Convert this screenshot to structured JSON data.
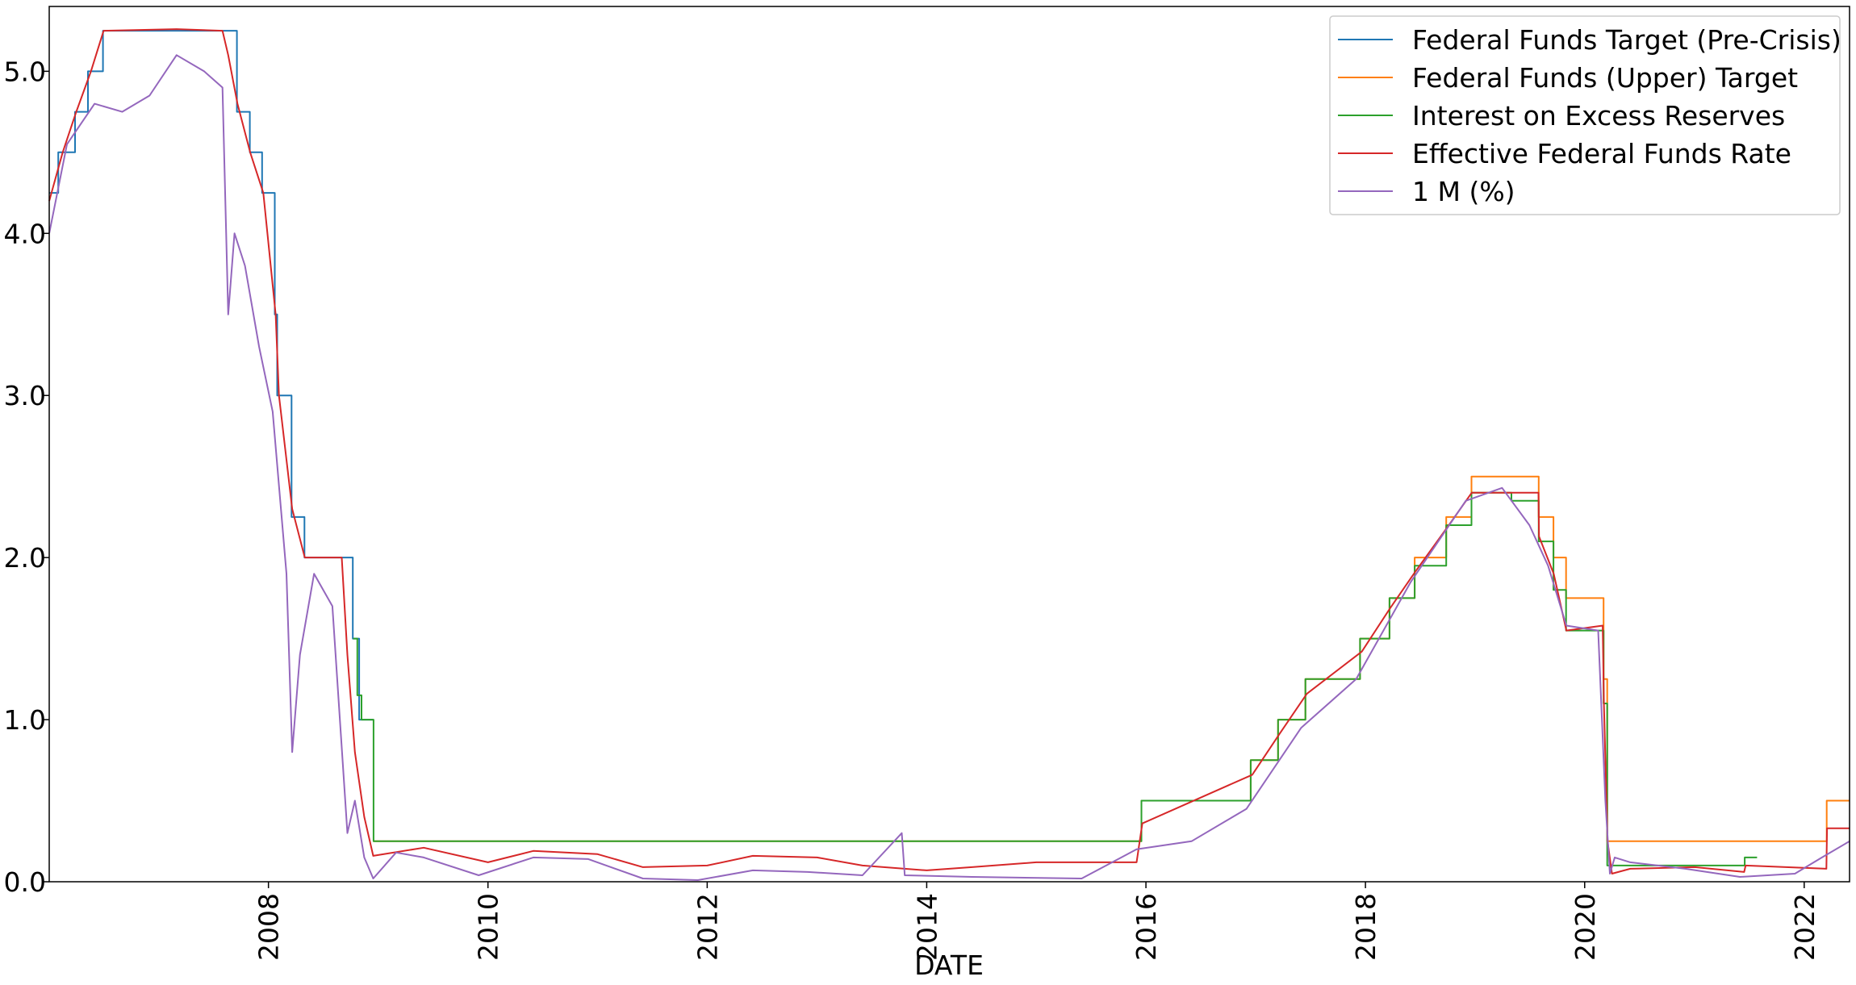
{
  "chart_data": {
    "type": "line",
    "title": "",
    "xlabel": "DATE",
    "ylabel": "",
    "xlim": [
      "2006-01-01",
      "2022-06-01"
    ],
    "ylim": [
      0,
      5.4
    ],
    "x_ticks": [
      "2008",
      "2010",
      "2012",
      "2014",
      "2016",
      "2018",
      "2020",
      "2022"
    ],
    "y_ticks": [
      "0.0",
      "1.0",
      "2.0",
      "3.0",
      "4.0",
      "5.0"
    ],
    "grid": false,
    "legend_position": "top-right",
    "series": [
      {
        "name": "Federal Funds Target (Pre-Crisis)",
        "color": "#1f77b4",
        "style": "step",
        "points": [
          [
            "2006-01-01",
            4.25
          ],
          [
            "2006-01-31",
            4.5
          ],
          [
            "2006-03-28",
            4.75
          ],
          [
            "2006-05-10",
            5.0
          ],
          [
            "2006-06-29",
            5.25
          ],
          [
            "2007-09-18",
            4.75
          ],
          [
            "2007-10-31",
            4.5
          ],
          [
            "2007-12-11",
            4.25
          ],
          [
            "2008-01-22",
            3.5
          ],
          [
            "2008-01-30",
            3.0
          ],
          [
            "2008-03-18",
            2.25
          ],
          [
            "2008-04-30",
            2.0
          ],
          [
            "2008-10-08",
            1.5
          ],
          [
            "2008-10-29",
            1.0
          ],
          [
            "2008-12-15",
            1.0
          ]
        ]
      },
      {
        "name": "Federal Funds (Upper) Target",
        "color": "#ff7f0e",
        "style": "step",
        "points": [
          [
            "2008-12-16",
            0.25
          ],
          [
            "2015-12-17",
            0.5
          ],
          [
            "2016-12-15",
            0.75
          ],
          [
            "2017-03-16",
            1.0
          ],
          [
            "2017-06-15",
            1.25
          ],
          [
            "2017-12-14",
            1.5
          ],
          [
            "2018-03-22",
            1.75
          ],
          [
            "2018-06-14",
            2.0
          ],
          [
            "2018-09-27",
            2.25
          ],
          [
            "2018-12-20",
            2.5
          ],
          [
            "2019-08-01",
            2.25
          ],
          [
            "2019-09-19",
            2.0
          ],
          [
            "2019-10-31",
            1.75
          ],
          [
            "2020-03-04",
            1.25
          ],
          [
            "2020-03-16",
            0.25
          ],
          [
            "2022-03-17",
            0.5
          ],
          [
            "2022-06-01",
            0.5
          ]
        ]
      },
      {
        "name": "Interest on Excess Reserves",
        "color": "#2ca02c",
        "style": "step",
        "points": [
          [
            "2008-10-09",
            1.5
          ],
          [
            "2008-10-23",
            1.15
          ],
          [
            "2008-11-06",
            1.0
          ],
          [
            "2008-12-16",
            0.25
          ],
          [
            "2015-12-17",
            0.5
          ],
          [
            "2016-12-15",
            0.75
          ],
          [
            "2017-03-16",
            1.0
          ],
          [
            "2017-06-15",
            1.25
          ],
          [
            "2017-12-14",
            1.5
          ],
          [
            "2018-03-22",
            1.75
          ],
          [
            "2018-06-14",
            1.95
          ],
          [
            "2018-09-27",
            2.2
          ],
          [
            "2018-12-20",
            2.4
          ],
          [
            "2019-05-02",
            2.35
          ],
          [
            "2019-08-01",
            2.1
          ],
          [
            "2019-09-19",
            1.8
          ],
          [
            "2019-10-31",
            1.55
          ],
          [
            "2020-03-04",
            1.1
          ],
          [
            "2020-03-16",
            0.1
          ],
          [
            "2021-06-17",
            0.15
          ],
          [
            "2021-07-28",
            0.15
          ]
        ]
      },
      {
        "name": "Effective Federal Funds Rate",
        "color": "#d62728",
        "style": "line",
        "points": [
          [
            "2006-01-01",
            4.2
          ],
          [
            "2006-02-15",
            4.5
          ],
          [
            "2006-04-01",
            4.75
          ],
          [
            "2006-05-20",
            5.0
          ],
          [
            "2006-07-01",
            5.25
          ],
          [
            "2007-03-01",
            5.26
          ],
          [
            "2007-08-01",
            5.25
          ],
          [
            "2007-08-20",
            5.1
          ],
          [
            "2007-09-20",
            4.8
          ],
          [
            "2007-11-01",
            4.5
          ],
          [
            "2007-12-15",
            4.25
          ],
          [
            "2008-01-25",
            3.5
          ],
          [
            "2008-02-05",
            3.0
          ],
          [
            "2008-03-20",
            2.3
          ],
          [
            "2008-05-01",
            2.0
          ],
          [
            "2008-09-01",
            2.0
          ],
          [
            "2008-09-20",
            1.4
          ],
          [
            "2008-10-15",
            0.8
          ],
          [
            "2008-11-15",
            0.4
          ],
          [
            "2008-12-15",
            0.16
          ],
          [
            "2009-06-01",
            0.21
          ],
          [
            "2010-01-01",
            0.12
          ],
          [
            "2010-06-01",
            0.19
          ],
          [
            "2011-01-01",
            0.17
          ],
          [
            "2011-06-01",
            0.09
          ],
          [
            "2012-01-01",
            0.1
          ],
          [
            "2012-06-01",
            0.16
          ],
          [
            "2013-01-01",
            0.15
          ],
          [
            "2013-06-01",
            0.1
          ],
          [
            "2014-01-01",
            0.07
          ],
          [
            "2014-06-01",
            0.09
          ],
          [
            "2015-01-01",
            0.12
          ],
          [
            "2015-12-01",
            0.12
          ],
          [
            "2015-12-20",
            0.36
          ],
          [
            "2016-12-20",
            0.66
          ],
          [
            "2017-03-20",
            0.91
          ],
          [
            "2017-06-20",
            1.16
          ],
          [
            "2017-12-20",
            1.42
          ],
          [
            "2018-03-25",
            1.69
          ],
          [
            "2018-06-15",
            1.91
          ],
          [
            "2018-09-28",
            2.18
          ],
          [
            "2018-12-21",
            2.4
          ],
          [
            "2019-07-31",
            2.4
          ],
          [
            "2019-08-02",
            2.13
          ],
          [
            "2019-09-20",
            1.9
          ],
          [
            "2019-11-01",
            1.55
          ],
          [
            "2020-03-01",
            1.58
          ],
          [
            "2020-03-05",
            1.1
          ],
          [
            "2020-03-17",
            0.25
          ],
          [
            "2020-04-01",
            0.05
          ],
          [
            "2020-06-01",
            0.08
          ],
          [
            "2021-01-01",
            0.09
          ],
          [
            "2021-06-15",
            0.06
          ],
          [
            "2021-06-20",
            0.1
          ],
          [
            "2022-03-16",
            0.08
          ],
          [
            "2022-03-18",
            0.33
          ],
          [
            "2022-06-01",
            0.33
          ]
        ]
      },
      {
        "name": "1 M (%)",
        "color": "#9467bd",
        "style": "line",
        "points": [
          [
            "2006-01-01",
            4.0
          ],
          [
            "2006-03-01",
            4.55
          ],
          [
            "2006-06-01",
            4.8
          ],
          [
            "2006-09-01",
            4.75
          ],
          [
            "2006-12-01",
            4.85
          ],
          [
            "2007-03-01",
            5.1
          ],
          [
            "2007-06-01",
            5.0
          ],
          [
            "2007-08-01",
            4.9
          ],
          [
            "2007-08-20",
            3.5
          ],
          [
            "2007-09-10",
            4.0
          ],
          [
            "2007-10-15",
            3.8
          ],
          [
            "2007-12-01",
            3.3
          ],
          [
            "2008-01-15",
            2.9
          ],
          [
            "2008-03-01",
            1.9
          ],
          [
            "2008-03-20",
            0.8
          ],
          [
            "2008-04-15",
            1.4
          ],
          [
            "2008-06-01",
            1.9
          ],
          [
            "2008-08-01",
            1.7
          ],
          [
            "2008-09-20",
            0.3
          ],
          [
            "2008-10-15",
            0.5
          ],
          [
            "2008-11-15",
            0.15
          ],
          [
            "2008-12-15",
            0.02
          ],
          [
            "2009-03-01",
            0.18
          ],
          [
            "2009-06-01",
            0.15
          ],
          [
            "2009-12-01",
            0.04
          ],
          [
            "2010-06-01",
            0.15
          ],
          [
            "2010-12-01",
            0.14
          ],
          [
            "2011-06-01",
            0.02
          ],
          [
            "2011-12-01",
            0.01
          ],
          [
            "2012-06-01",
            0.07
          ],
          [
            "2012-12-01",
            0.06
          ],
          [
            "2013-06-01",
            0.04
          ],
          [
            "2013-10-10",
            0.3
          ],
          [
            "2013-10-20",
            0.04
          ],
          [
            "2014-06-01",
            0.03
          ],
          [
            "2015-06-01",
            0.02
          ],
          [
            "2015-12-01",
            0.2
          ],
          [
            "2016-06-01",
            0.25
          ],
          [
            "2016-12-01",
            0.45
          ],
          [
            "2017-06-01",
            0.95
          ],
          [
            "2017-12-01",
            1.25
          ],
          [
            "2018-06-01",
            1.85
          ],
          [
            "2018-12-01",
            2.35
          ],
          [
            "2019-04-01",
            2.43
          ],
          [
            "2019-07-01",
            2.2
          ],
          [
            "2019-09-01",
            1.95
          ],
          [
            "2019-11-01",
            1.58
          ],
          [
            "2020-02-15",
            1.55
          ],
          [
            "2020-03-10",
            0.5
          ],
          [
            "2020-03-25",
            0.05
          ],
          [
            "2020-04-10",
            0.15
          ],
          [
            "2020-06-01",
            0.12
          ],
          [
            "2020-12-01",
            0.08
          ],
          [
            "2021-06-01",
            0.03
          ],
          [
            "2021-12-01",
            0.05
          ],
          [
            "2022-03-01",
            0.15
          ],
          [
            "2022-06-01",
            0.25
          ]
        ]
      }
    ]
  }
}
